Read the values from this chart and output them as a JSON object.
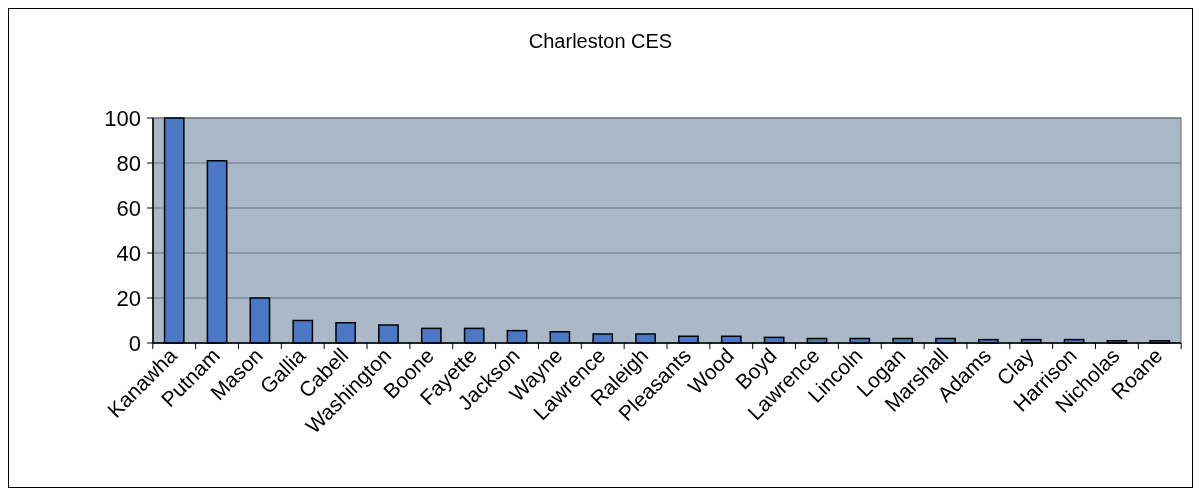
{
  "chart_data": {
    "type": "bar",
    "title": "Charleston CES",
    "categories": [
      "Kanawha",
      "Putnam",
      "Mason",
      "Gallia",
      "Cabell",
      "Washington",
      "Boone",
      "Fayette",
      "Jackson",
      "Wayne",
      "Lawrence",
      "Raleigh",
      "Pleasants",
      "Wood",
      "Boyd",
      "Lawrence",
      "Lincoln",
      "Logan",
      "Marshall",
      "Adams",
      "Clay",
      "Harrison",
      "Nicholas",
      "Roane"
    ],
    "values": [
      100,
      81,
      20,
      10,
      9,
      8,
      6.5,
      6.5,
      5.5,
      5,
      4,
      4,
      3,
      3,
      2.5,
      2,
      2,
      2,
      2,
      1.5,
      1.5,
      1.5,
      1,
      1
    ],
    "color": "#4a78c4",
    "ylim": [
      0,
      100
    ],
    "yticks": [
      0,
      20,
      40,
      60,
      80,
      100
    ],
    "grid": "y"
  }
}
